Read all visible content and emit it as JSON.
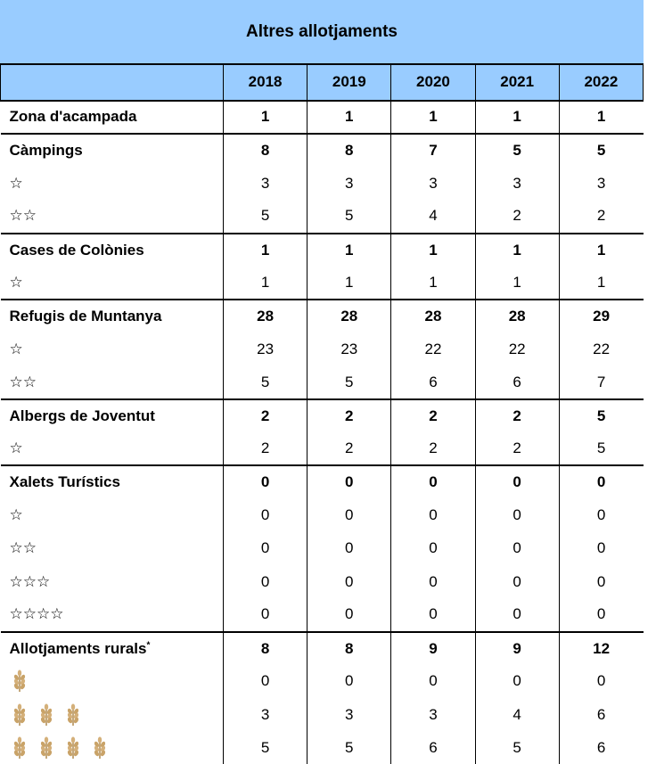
{
  "header": {
    "title": "Altres allotjaments"
  },
  "table": {
    "columns": [
      "2018",
      "2019",
      "2020",
      "2021",
      "2022"
    ],
    "rows": [
      {
        "label": "Zona d'acampada",
        "values": [
          1,
          1,
          1,
          1,
          1
        ]
      },
      {
        "label": "Càmpings",
        "values": [
          8,
          8,
          7,
          5,
          5
        ]
      },
      {
        "label": "☆",
        "values": [
          3,
          3,
          3,
          3,
          3
        ]
      },
      {
        "label": "☆☆",
        "values": [
          5,
          5,
          4,
          2,
          2
        ]
      },
      {
        "label": "Cases de Colònies",
        "values": [
          1,
          1,
          1,
          1,
          1
        ]
      },
      {
        "label": "☆",
        "values": [
          1,
          1,
          1,
          1,
          1
        ]
      },
      {
        "label": "Refugis de Muntanya",
        "values": [
          28,
          28,
          28,
          28,
          29
        ]
      },
      {
        "label": "☆",
        "values": [
          23,
          23,
          22,
          22,
          22
        ]
      },
      {
        "label": "☆☆",
        "values": [
          5,
          5,
          6,
          6,
          7
        ]
      },
      {
        "label": "Albergs de Joventut",
        "values": [
          2,
          2,
          2,
          2,
          5
        ]
      },
      {
        "label": "☆",
        "values": [
          2,
          2,
          2,
          2,
          5
        ]
      },
      {
        "label": "Xalets Turístics",
        "values": [
          0,
          0,
          0,
          0,
          0
        ]
      },
      {
        "label": "☆",
        "values": [
          0,
          0,
          0,
          0,
          0
        ]
      },
      {
        "label": "☆☆",
        "values": [
          0,
          0,
          0,
          0,
          0
        ]
      },
      {
        "label": "☆☆☆",
        "values": [
          0,
          0,
          0,
          0,
          0
        ]
      },
      {
        "label": "☆☆☆☆",
        "values": [
          0,
          0,
          0,
          0,
          0
        ]
      },
      {
        "label": "Allotjaments rurals",
        "note": "*",
        "values": [
          8,
          8,
          9,
          9,
          12
        ]
      },
      {
        "values": [
          0,
          0,
          0,
          0,
          0
        ]
      },
      {
        "values": [
          3,
          3,
          3,
          4,
          6
        ]
      },
      {
        "values": [
          5,
          5,
          6,
          5,
          6
        ]
      }
    ]
  }
}
